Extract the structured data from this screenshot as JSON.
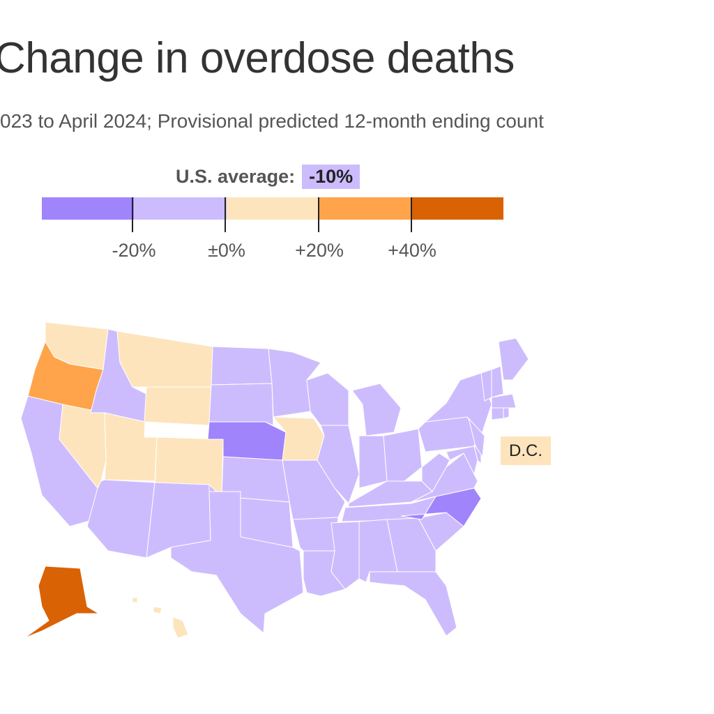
{
  "title": "Change in overdose deaths",
  "subtitle": "023 to April 2024; Provisional predicted 12-month ending count",
  "us_average": {
    "label": "U.S. average:",
    "value": "-10%"
  },
  "legend": {
    "bins": [
      {
        "range": "below -20%",
        "color": "#a084fc"
      },
      {
        "range": "-20% to ±0%",
        "color": "#cdbcfd"
      },
      {
        "range": "±0% to +20%",
        "color": "#fde4bc"
      },
      {
        "range": "+20% to +40%",
        "color": "#ffa44a"
      },
      {
        "range": "above +40%",
        "color": "#d96205"
      }
    ],
    "tick_labels": [
      "-20%",
      "±0%",
      "+20%",
      "+40%"
    ]
  },
  "dc_label": "D.C.",
  "state_bins": {
    "WA": 2,
    "OR": 3,
    "CA": 1,
    "NV": 2,
    "ID": 1,
    "MT": 2,
    "WY": 2,
    "UT": 2,
    "CO": 2,
    "AZ": 1,
    "NM": 1,
    "ND": 1,
    "SD": 1,
    "NE": 0,
    "KS": 1,
    "OK": 1,
    "TX": 1,
    "MN": 1,
    "IA": 2,
    "MO": 1,
    "AR": 1,
    "LA": 1,
    "WI": 1,
    "IL": 1,
    "MI": 1,
    "IN": 1,
    "OH": 1,
    "KY": 1,
    "TN": 1,
    "MS": 1,
    "AL": 1,
    "GA": 1,
    "FL": 1,
    "SC": 1,
    "NC": 0,
    "VA": 1,
    "WV": 1,
    "PA": 1,
    "NY": 1,
    "MD": 1,
    "DE": 1,
    "NJ": 1,
    "VT": 1,
    "NH": 1,
    "ME": 1,
    "MA": 1,
    "CT": 1,
    "RI": 1,
    "AK": 4,
    "HI": 2,
    "DC": 2
  }
}
